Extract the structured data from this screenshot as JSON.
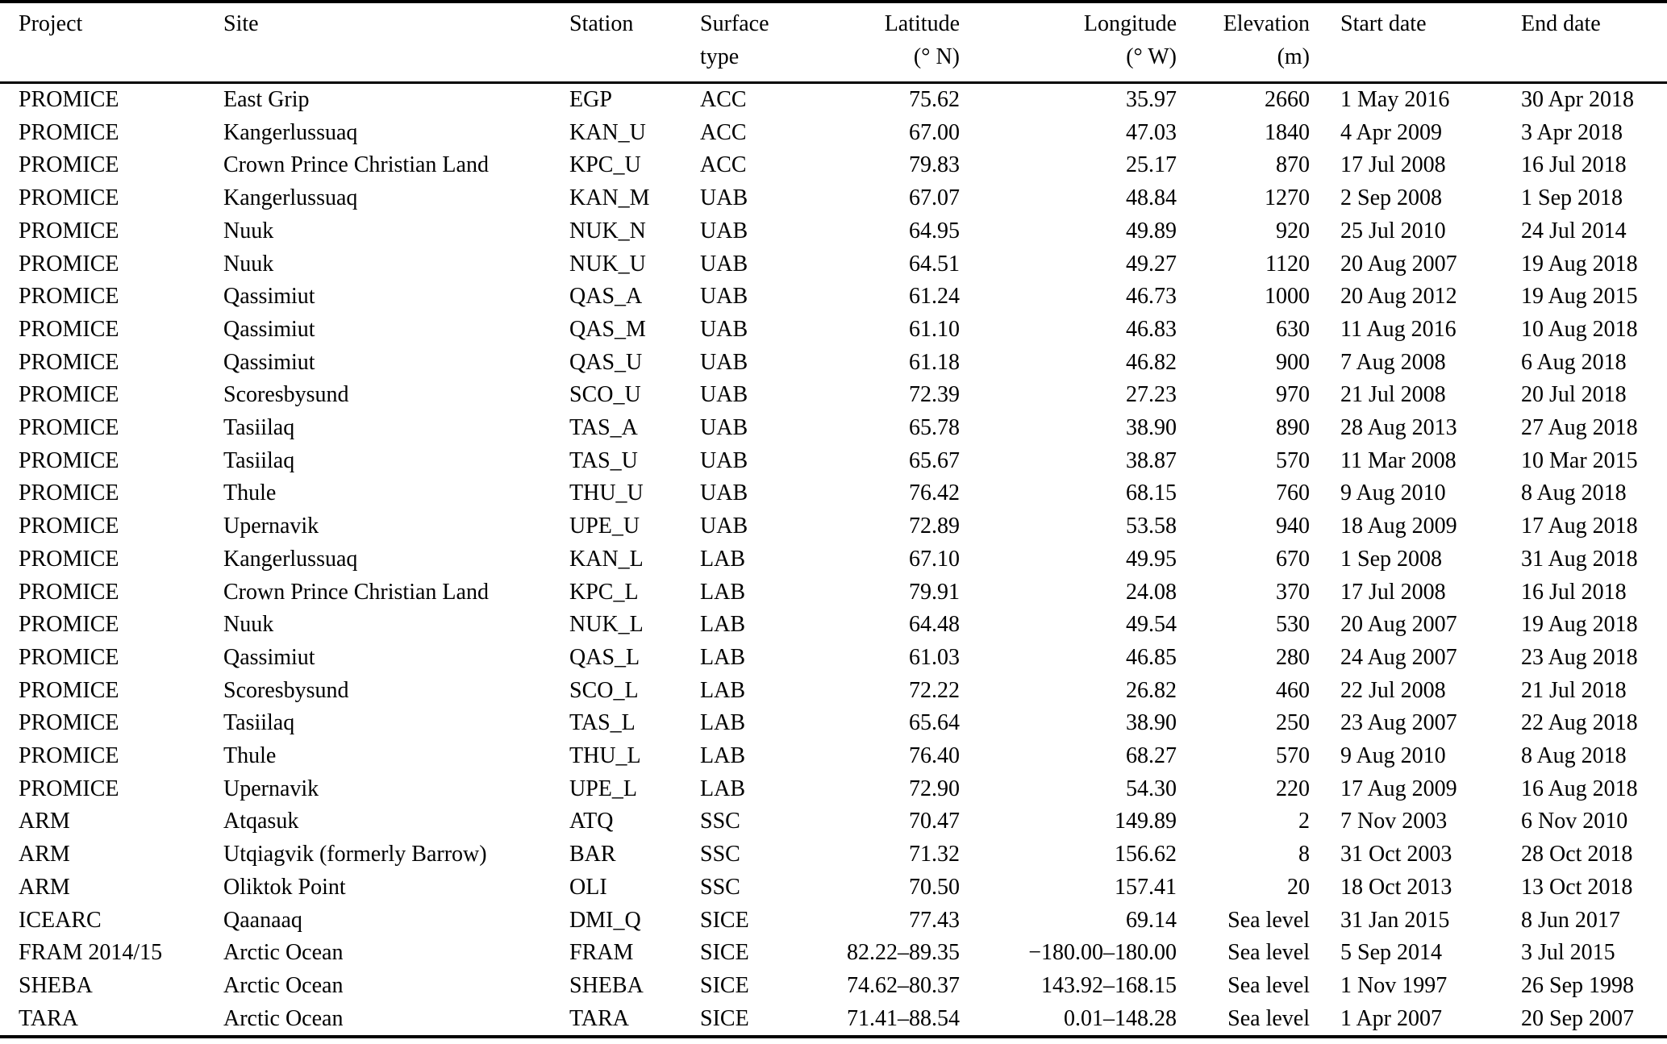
{
  "colors": {
    "text": "#000000",
    "background": "#ffffff",
    "rule": "#000000"
  },
  "table": {
    "columns": [
      {
        "label": "Project",
        "unit": "",
        "align": "left"
      },
      {
        "label": "Site",
        "unit": "",
        "align": "left"
      },
      {
        "label": "Station",
        "unit": "",
        "align": "left"
      },
      {
        "label": "Surface",
        "unit": "type",
        "align": "left"
      },
      {
        "label": "Latitude",
        "unit": "(° N)",
        "align": "right"
      },
      {
        "label": "Longitude",
        "unit": "(° W)",
        "align": "right"
      },
      {
        "label": "Elevation",
        "unit": "(m)",
        "align": "right"
      },
      {
        "label": "Start date",
        "unit": "",
        "align": "left"
      },
      {
        "label": "End date",
        "unit": "",
        "align": "left"
      }
    ],
    "rows": [
      [
        "PROMICE",
        "East Grip",
        "EGP",
        "ACC",
        "75.62",
        "35.97",
        "2660",
        "1 May 2016",
        "30 Apr 2018"
      ],
      [
        "PROMICE",
        "Kangerlussuaq",
        "KAN_U",
        "ACC",
        "67.00",
        "47.03",
        "1840",
        "4 Apr 2009",
        "3 Apr 2018"
      ],
      [
        "PROMICE",
        "Crown Prince Christian Land",
        "KPC_U",
        "ACC",
        "79.83",
        "25.17",
        "870",
        "17 Jul 2008",
        "16 Jul 2018"
      ],
      [
        "PROMICE",
        "Kangerlussuaq",
        "KAN_M",
        "UAB",
        "67.07",
        "48.84",
        "1270",
        "2 Sep 2008",
        "1 Sep 2018"
      ],
      [
        "PROMICE",
        "Nuuk",
        "NUK_N",
        "UAB",
        "64.95",
        "49.89",
        "920",
        "25 Jul 2010",
        "24 Jul 2014"
      ],
      [
        "PROMICE",
        "Nuuk",
        "NUK_U",
        "UAB",
        "64.51",
        "49.27",
        "1120",
        "20 Aug 2007",
        "19 Aug 2018"
      ],
      [
        "PROMICE",
        "Qassimiut",
        "QAS_A",
        "UAB",
        "61.24",
        "46.73",
        "1000",
        "20 Aug 2012",
        "19 Aug 2015"
      ],
      [
        "PROMICE",
        "Qassimiut",
        "QAS_M",
        "UAB",
        "61.10",
        "46.83",
        "630",
        "11 Aug 2016",
        "10 Aug 2018"
      ],
      [
        "PROMICE",
        "Qassimiut",
        "QAS_U",
        "UAB",
        "61.18",
        "46.82",
        "900",
        "7 Aug 2008",
        "6 Aug 2018"
      ],
      [
        "PROMICE",
        "Scoresbysund",
        "SCO_U",
        "UAB",
        "72.39",
        "27.23",
        "970",
        "21 Jul 2008",
        "20 Jul 2018"
      ],
      [
        "PROMICE",
        "Tasiilaq",
        "TAS_A",
        "UAB",
        "65.78",
        "38.90",
        "890",
        "28 Aug 2013",
        "27 Aug 2018"
      ],
      [
        "PROMICE",
        "Tasiilaq",
        "TAS_U",
        "UAB",
        "65.67",
        "38.87",
        "570",
        "11 Mar 2008",
        "10 Mar 2015"
      ],
      [
        "PROMICE",
        "Thule",
        "THU_U",
        "UAB",
        "76.42",
        "68.15",
        "760",
        "9 Aug 2010",
        "8 Aug 2018"
      ],
      [
        "PROMICE",
        "Upernavik",
        "UPE_U",
        "UAB",
        "72.89",
        "53.58",
        "940",
        "18 Aug 2009",
        "17 Aug 2018"
      ],
      [
        "PROMICE",
        "Kangerlussuaq",
        "KAN_L",
        "LAB",
        "67.10",
        "49.95",
        "670",
        "1 Sep 2008",
        "31 Aug 2018"
      ],
      [
        "PROMICE",
        "Crown Prince Christian Land",
        "KPC_L",
        "LAB",
        "79.91",
        "24.08",
        "370",
        "17 Jul 2008",
        "16 Jul 2018"
      ],
      [
        "PROMICE",
        "Nuuk",
        "NUK_L",
        "LAB",
        "64.48",
        "49.54",
        "530",
        "20 Aug 2007",
        "19 Aug 2018"
      ],
      [
        "PROMICE",
        "Qassimiut",
        "QAS_L",
        "LAB",
        "61.03",
        "46.85",
        "280",
        "24 Aug 2007",
        "23 Aug 2018"
      ],
      [
        "PROMICE",
        "Scoresbysund",
        "SCO_L",
        "LAB",
        "72.22",
        "26.82",
        "460",
        "22 Jul 2008",
        "21 Jul 2018"
      ],
      [
        "PROMICE",
        "Tasiilaq",
        "TAS_L",
        "LAB",
        "65.64",
        "38.90",
        "250",
        "23 Aug 2007",
        "22 Aug 2018"
      ],
      [
        "PROMICE",
        "Thule",
        "THU_L",
        "LAB",
        "76.40",
        "68.27",
        "570",
        "9 Aug 2010",
        "8 Aug 2018"
      ],
      [
        "PROMICE",
        "Upernavik",
        "UPE_L",
        "LAB",
        "72.90",
        "54.30",
        "220",
        "17 Aug 2009",
        "16 Aug 2018"
      ],
      [
        "ARM",
        "Atqasuk",
        "ATQ",
        "SSC",
        "70.47",
        "149.89",
        "2",
        "7 Nov 2003",
        "6 Nov 2010"
      ],
      [
        "ARM",
        "Utqiagvik (formerly Barrow)",
        "BAR",
        "SSC",
        "71.32",
        "156.62",
        "8",
        "31 Oct 2003",
        "28 Oct 2018"
      ],
      [
        "ARM",
        "Oliktok Point",
        "OLI",
        "SSC",
        "70.50",
        "157.41",
        "20",
        "18 Oct 2013",
        "13 Oct 2018"
      ],
      [
        "ICEARC",
        "Qaanaaq",
        "DMI_Q",
        "SICE",
        "77.43",
        "69.14",
        "Sea level",
        "31 Jan 2015",
        "8 Jun 2017"
      ],
      [
        "FRAM 2014/15",
        "Arctic Ocean",
        "FRAM",
        "SICE",
        "82.22–89.35",
        "−180.00–180.00",
        "Sea level",
        "5 Sep 2014",
        "3 Jul 2015"
      ],
      [
        "SHEBA",
        "Arctic Ocean",
        "SHEBA",
        "SICE",
        "74.62–80.37",
        "143.92–168.15",
        "Sea level",
        "1 Nov 1997",
        "26 Sep 1998"
      ],
      [
        "TARA",
        "Arctic Ocean",
        "TARA",
        "SICE",
        "71.41–88.54",
        "0.01–148.28",
        "Sea level",
        "1 Apr 2007",
        "20 Sep 2007"
      ]
    ]
  }
}
